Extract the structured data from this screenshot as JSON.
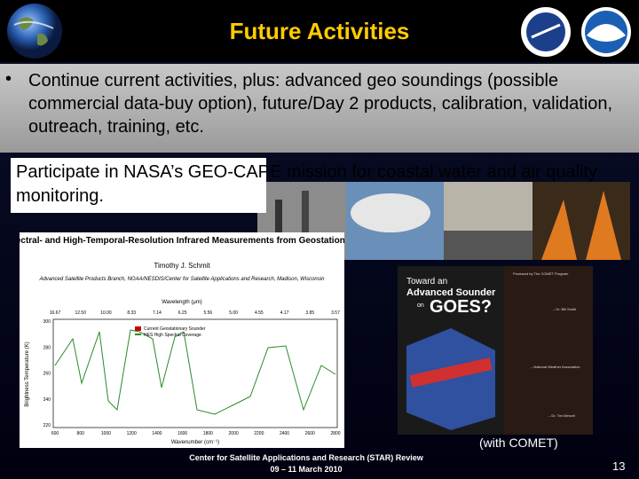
{
  "header": {
    "title": "Future Activities"
  },
  "bullet": {
    "marker": "•",
    "text": "Continue current activities, plus: advanced geo soundings (possible commercial data-buy option), future/Day 2 products, calibration, validation, outreach, training, etc."
  },
  "callout": {
    "text": "Participate in NASA’s GEO-CAPE mission for coastal water and air quality monitoring."
  },
  "paper": {
    "title": "High-Spectral- and High-Temporal-Resolution Infrared Measurements from Geostationary Orbit",
    "author": "Timothy J. Schmit",
    "affiliation": "Advanced Satellite Products Branch, NOAA/NESDIS/Center for Satellite Applications and Research, Madison, Wisconsin",
    "plot": {
      "top_axis": "Wavelength (μm)",
      "wavelengths": [
        "16.67",
        "12.50",
        "10.00",
        "8.33",
        "7.14",
        "6.25",
        "5.56",
        "5.00",
        "4.55",
        "4.17",
        "3.85",
        "3.57"
      ],
      "legend": [
        "Current Geostationary Sounder",
        "HES High Spectral Coverage"
      ],
      "y_label": "Brightness Temperature (K)",
      "y_ticks": [
        "300",
        "280",
        "260",
        "240",
        "220"
      ],
      "x_label": "Wavenumber (cm⁻¹)",
      "x_ticks": [
        "600",
        "800",
        "1000",
        "1200",
        "1400",
        "1600",
        "1800",
        "2000",
        "2200",
        "2400",
        "2600",
        "2800"
      ]
    }
  },
  "brochure": {
    "line1": "Toward an",
    "line2": "Advanced Sounder",
    "line3": "on",
    "line4": "GOES?",
    "producer": "Produced by The COMET Program",
    "quotes": [
      "– Dr. Bill Smith",
      "– National Weather Association",
      "– Dr. Tim Menzel"
    ]
  },
  "caption": "(with COMET)",
  "footer": {
    "line1": "Center for Satellite Applications and Research (STAR) Review",
    "line2": "09 – 11 March 2010",
    "page": "13"
  }
}
